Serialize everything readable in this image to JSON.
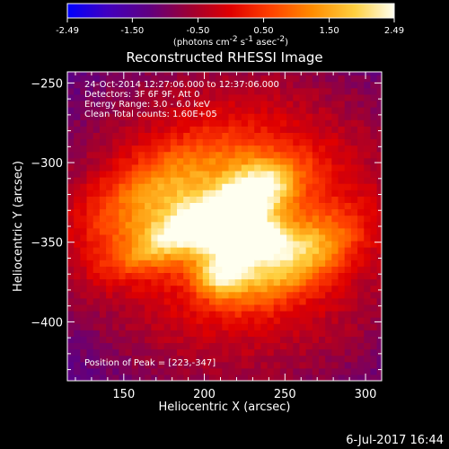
{
  "chart_data": {
    "type": "heatmap",
    "title": "Reconstructed RHESSI Image",
    "xlabel": "Heliocentric X (arcsec)",
    "ylabel": "Heliocentric Y (arcsec)",
    "xlim": [
      115,
      310
    ],
    "ylim": [
      -437,
      -243
    ],
    "x_ticks": [
      150,
      200,
      250,
      300
    ],
    "y_ticks": [
      -250,
      -300,
      -350,
      -400
    ],
    "grid": false,
    "colorbar": {
      "min": -2.49,
      "max": 2.49,
      "ticks": [
        "-2.49",
        "-1.50",
        "-0.50",
        "0.50",
        "1.50",
        "2.49"
      ],
      "tick_values": [
        -2.49,
        -1.5,
        -0.5,
        0.5,
        1.5,
        2.49
      ],
      "unit_main": "(photons cm",
      "unit_sup1": "-2",
      "unit_mid": " s",
      "unit_sup2": "-1",
      "unit_mid2": " asec",
      "unit_sup3": "-2",
      "unit_end": ")"
    },
    "annotations": [
      "24-Oct-2014 12:27:06.000 to 12:37:06.000",
      "Detectors: 3F 6F 9F, Att 0",
      "Energy Range: 3.0 - 6.0 keV",
      "Clean    Total counts: 1.60E+05"
    ],
    "peak_label": "Position of Peak = [223,-347]",
    "peak": {
      "x": 223,
      "y": -347
    },
    "emission_blobs": [
      {
        "x": 223,
        "y": -347,
        "sx": 16,
        "sy": 9,
        "amp": 1.0
      },
      {
        "x": 200,
        "y": -336,
        "sx": 40,
        "sy": 10,
        "amp": 0.7,
        "angle": -28
      },
      {
        "x": 170,
        "y": -320,
        "sx": 40,
        "sy": 18,
        "amp": 0.45,
        "angle": -28
      },
      {
        "x": 255,
        "y": -360,
        "sx": 30,
        "sy": 14,
        "amp": 0.55,
        "angle": -28
      },
      {
        "x": 210,
        "y": -370,
        "sx": 12,
        "sy": 9,
        "amp": 0.55
      },
      {
        "x": 235,
        "y": -315,
        "sx": 14,
        "sy": 14,
        "amp": 0.35
      }
    ],
    "background_level": -1.6
  },
  "footer": {
    "date": "6-Jul-2017 16:44"
  }
}
